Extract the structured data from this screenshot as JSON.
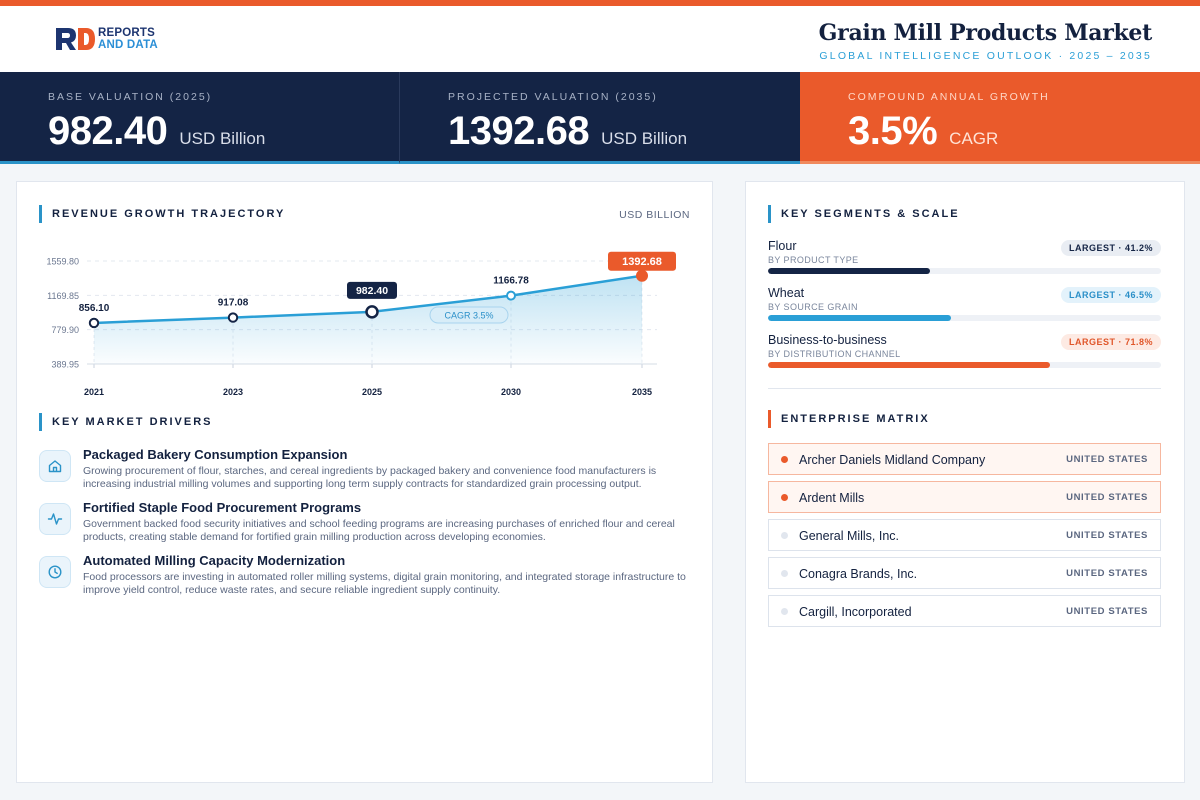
{
  "brand": {
    "logo_line1": "REPORTS",
    "logo_line2": "AND DATA",
    "colors": {
      "navy": "#142445",
      "orange": "#ea5a2b",
      "blue": "#2a93c8"
    }
  },
  "header": {
    "title": "Grain Mill Products Market",
    "subtitle": "GLOBAL INTELLIGENCE OUTLOOK  ·  2025 – 2035"
  },
  "kpis": [
    {
      "label": "BASE VALUATION (2025)",
      "value": "982.40",
      "unit": "USD Billion"
    },
    {
      "label": "PROJECTED VALUATION (2035)",
      "value": "1392.68",
      "unit": "USD Billion"
    },
    {
      "label": "COMPOUND ANNUAL GROWTH",
      "value": "3.5%",
      "unit": "CAGR"
    }
  ],
  "revenue": {
    "title": "REVENUE GROWTH TRAJECTORY",
    "units": "USD BILLION"
  },
  "chart_data": {
    "type": "area",
    "title": "REVENUE GROWTH TRAJECTORY",
    "ylabel": "USD BILLION",
    "categories": [
      "2021",
      "2023",
      "2025",
      "2030",
      "2035"
    ],
    "values": [
      856.1,
      917.08,
      982.4,
      1166.78,
      1392.68
    ],
    "value_labels": [
      "856.10",
      "917.08",
      "982.40",
      "1166.78",
      "1392.68"
    ],
    "y_ticks": [
      "1559.80",
      "1169.85",
      "779.90",
      "389.95"
    ],
    "ylim": [
      389.95,
      1559.8
    ],
    "annotation": "CAGR 3.5%",
    "grid": true,
    "colors": {
      "line": "#2a9fd6",
      "highlight": "#ea5a2b",
      "marker_dark": "#142445"
    }
  },
  "drivers": {
    "title": "KEY MARKET DRIVERS",
    "items": [
      {
        "icon": "home-icon",
        "title": "Packaged Bakery Consumption Expansion",
        "desc": "Growing procurement of flour, starches, and cereal ingredients by packaged bakery and convenience food manufacturers is increasing industrial milling volumes and supporting long term supply contracts for standardized grain processing output."
      },
      {
        "icon": "activity-icon",
        "title": "Fortified Staple Food Procurement Programs",
        "desc": "Government backed food security initiatives and school feeding programs are increasing purchases of enriched flour and cereal products, creating stable demand for fortified grain milling production across developing economies."
      },
      {
        "icon": "clock-icon",
        "title": "Automated Milling Capacity Modernization",
        "desc": "Food processors are investing in automated roller milling systems, digital grain monitoring, and integrated storage infrastructure to improve yield control, reduce waste rates, and secure reliable ingredient supply continuity."
      }
    ]
  },
  "segments": {
    "title": "KEY SEGMENTS & SCALE",
    "items": [
      {
        "name": "Flour",
        "sub": "BY PRODUCT TYPE",
        "badge": "LARGEST · 41.2%",
        "share": 41.2,
        "fill_color": "#142445",
        "badge_bg": "#e9edf3",
        "badge_fg": "#142445"
      },
      {
        "name": "Wheat",
        "sub": "BY SOURCE GRAIN",
        "badge": "LARGEST · 46.5%",
        "share": 46.5,
        "fill_color": "#2a9fd6",
        "badge_bg": "#e3f2fb",
        "badge_fg": "#2a8fc8"
      },
      {
        "name": "Business-to-business",
        "sub": "BY DISTRIBUTION CHANNEL",
        "badge": "LARGEST · 71.8%",
        "share": 71.8,
        "fill_color": "#ea5a2b",
        "badge_bg": "#fdeae3",
        "badge_fg": "#e0562a"
      }
    ]
  },
  "enterprise": {
    "title": "ENTERPRISE MATRIX",
    "companies": [
      {
        "name": "Archer Daniels Midland Company",
        "country": "UNITED STATES",
        "highlight": true
      },
      {
        "name": "Ardent Mills",
        "country": "UNITED STATES",
        "highlight": true
      },
      {
        "name": "General Mills, Inc.",
        "country": "UNITED STATES",
        "highlight": false
      },
      {
        "name": "Conagra Brands, Inc.",
        "country": "UNITED STATES",
        "highlight": false
      },
      {
        "name": "Cargill, Incorporated",
        "country": "UNITED STATES",
        "highlight": false
      }
    ]
  }
}
